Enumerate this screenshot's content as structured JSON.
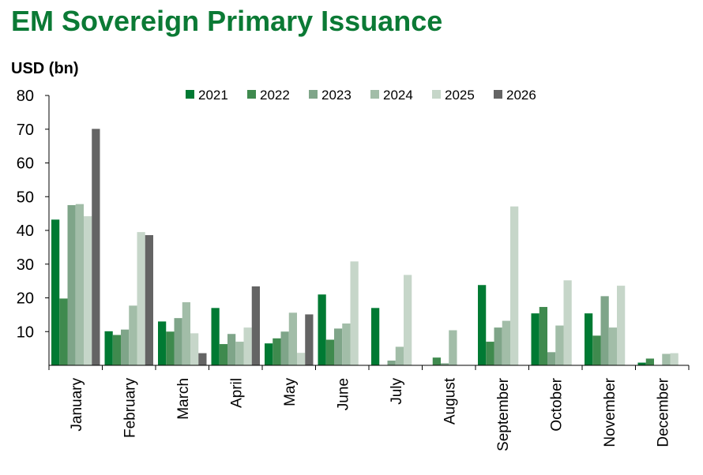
{
  "title": "EM Sovereign Primary Issuance",
  "chart_data": {
    "type": "bar",
    "title": "EM Sovereign Primary Issuance",
    "ylabel": "USD (bn)",
    "xlabel": "",
    "ylim": [
      0,
      80
    ],
    "yticks": [
      10,
      20,
      30,
      40,
      50,
      60,
      70,
      80
    ],
    "grid": false,
    "legend_position": "top-center",
    "categories": [
      "January",
      "February",
      "March",
      "April",
      "May",
      "June",
      "July",
      "August",
      "September",
      "October",
      "November",
      "December"
    ],
    "series": [
      {
        "name": "2021",
        "color": "#007a33",
        "values": [
          43.2,
          10.1,
          13.0,
          17.0,
          6.5,
          21.0,
          17.0,
          0.0,
          23.8,
          15.4,
          15.4,
          0.8
        ]
      },
      {
        "name": "2022",
        "color": "#3f8a4e",
        "values": [
          19.8,
          9.0,
          10.0,
          6.3,
          8.0,
          7.6,
          0.0,
          2.3,
          7.0,
          17.3,
          8.8,
          2.0
        ]
      },
      {
        "name": "2023",
        "color": "#7fa589",
        "values": [
          47.5,
          10.6,
          14.0,
          9.3,
          10.0,
          10.9,
          1.4,
          0.6,
          11.2,
          3.9,
          20.5,
          0.0
        ]
      },
      {
        "name": "2024",
        "color": "#a2bda8",
        "values": [
          47.8,
          17.7,
          18.7,
          7.0,
          15.6,
          12.4,
          5.5,
          10.4,
          13.2,
          11.8,
          11.2,
          3.4
        ]
      },
      {
        "name": "2025",
        "color": "#c6d6c9",
        "values": [
          44.2,
          39.5,
          9.5,
          11.2,
          3.7,
          30.8,
          26.8,
          0.0,
          47.1,
          25.2,
          23.6,
          3.6
        ]
      },
      {
        "name": "2026",
        "color": "#646464",
        "values": [
          70.1,
          38.6,
          3.6,
          23.4,
          15.1,
          0.0,
          0.0,
          0.0,
          0.0,
          0.0,
          0.0,
          0.0
        ]
      }
    ]
  }
}
